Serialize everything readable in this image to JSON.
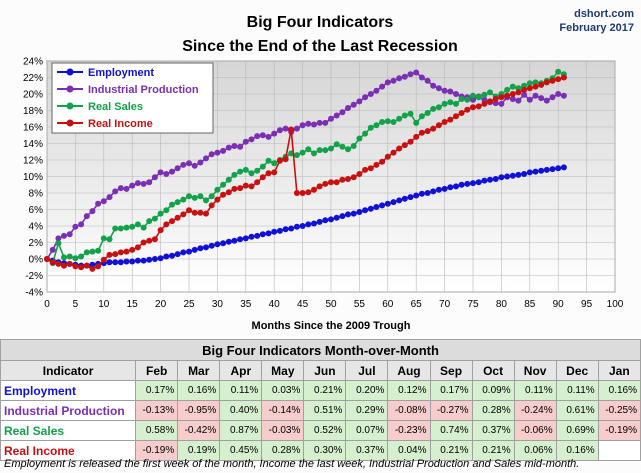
{
  "chart_data": {
    "type": "line",
    "title_line1": "Big Four Indicators",
    "title_line2": "Since the End of the Last Recession",
    "credit_site": "dshort.com",
    "credit_date": "February 2017",
    "xlabel": "Months Since the 2009 Trough",
    "xlim": [
      0,
      100
    ],
    "ylim": [
      -4,
      24
    ],
    "x_ticks": [
      0,
      5,
      10,
      15,
      20,
      25,
      30,
      35,
      40,
      45,
      50,
      55,
      60,
      65,
      70,
      75,
      80,
      85,
      90,
      95,
      100
    ],
    "y_ticks": [
      "-4%",
      "-2%",
      "0%",
      "2%",
      "4%",
      "6%",
      "8%",
      "10%",
      "12%",
      "14%",
      "16%",
      "18%",
      "20%",
      "22%",
      "24%"
    ],
    "legend_placement": "top-left",
    "grid": true,
    "series": [
      {
        "name": "Employment",
        "color": "#1010d8",
        "values": [
          0,
          -0.2,
          -0.4,
          -0.5,
          -0.6,
          -0.7,
          -0.8,
          -0.8,
          -0.7,
          -0.6,
          -0.5,
          -0.4,
          -0.4,
          -0.4,
          -0.3,
          -0.3,
          -0.2,
          -0.2,
          -0.1,
          0,
          0.1,
          0.3,
          0.4,
          0.6,
          0.8,
          0.9,
          1.1,
          1.3,
          1.4,
          1.6,
          1.8,
          1.9,
          2.1,
          2.2,
          2.4,
          2.5,
          2.7,
          2.8,
          3.0,
          3.1,
          3.3,
          3.4,
          3.6,
          3.7,
          3.9,
          4.0,
          4.2,
          4.3,
          4.5,
          4.7,
          4.8,
          5.0,
          5.2,
          5.4,
          5.5,
          5.7,
          5.9,
          6.1,
          6.3,
          6.5,
          6.7,
          6.9,
          7.1,
          7.3,
          7.5,
          7.7,
          7.9,
          8.0,
          8.2,
          8.4,
          8.5,
          8.7,
          8.8,
          9.0,
          9.1,
          9.2,
          9.3,
          9.5,
          9.6,
          9.7,
          9.9,
          10.0,
          10.1,
          10.2,
          10.3,
          10.5,
          10.6,
          10.7,
          10.8,
          10.9,
          11.0,
          11.1
        ]
      },
      {
        "name": "Industrial Production",
        "color": "#7a2fb5",
        "values": [
          0,
          1.1,
          2.5,
          2.8,
          3.0,
          3.9,
          4.2,
          5.2,
          5.8,
          6.7,
          7.0,
          7.5,
          8.2,
          8.6,
          8.5,
          8.9,
          9.2,
          9.1,
          9.3,
          9.9,
          10.5,
          10.3,
          10.6,
          11.0,
          11.4,
          11.6,
          11.3,
          11.7,
          12.2,
          12.7,
          12.9,
          13.1,
          13.5,
          13.7,
          13.6,
          14.2,
          14.5,
          14.9,
          15.0,
          14.8,
          15.2,
          15.6,
          15.8,
          15.4,
          15.8,
          16.2,
          16.4,
          16.3,
          16.5,
          16.5,
          17.0,
          17.4,
          17.8,
          18.3,
          18.7,
          19.1,
          19.6,
          20.0,
          20.4,
          20.9,
          21.4,
          21.6,
          21.9,
          22.1,
          22.4,
          22.6,
          22.0,
          21.6,
          21.0,
          20.7,
          20.4,
          20.3,
          20.0,
          19.7,
          19.6,
          19.3,
          19.7,
          19.3,
          19.0,
          18.9,
          18.8,
          19.6,
          19.4,
          19.2,
          19.9,
          19.3,
          19.8,
          19.5,
          19.2,
          19.6,
          20.0,
          19.8
        ]
      },
      {
        "name": "Real Sales",
        "color": "#12a24a",
        "values": [
          0,
          -0.5,
          1.9,
          0.2,
          0.3,
          0.1,
          0.3,
          0.8,
          0.9,
          1.0,
          2.5,
          2.4,
          3.7,
          3.7,
          3.8,
          3.9,
          4.2,
          3.8,
          4.6,
          4.9,
          5.5,
          5.9,
          6.6,
          6.9,
          7.2,
          7.6,
          7.4,
          7.6,
          7.1,
          7.6,
          8.4,
          9.0,
          9.6,
          10.2,
          10.6,
          10.8,
          10.4,
          10.7,
          11.2,
          11.9,
          11.6,
          12.0,
          12.4,
          12.8,
          12.6,
          12.9,
          13.3,
          12.8,
          13.2,
          13.2,
          13.4,
          13.9,
          13.6,
          13.3,
          13.7,
          14.6,
          15.2,
          15.9,
          16.2,
          16.6,
          16.7,
          16.6,
          17.0,
          17.4,
          17.6,
          16.5,
          17.3,
          17.7,
          18.2,
          18.4,
          18.8,
          19.0,
          18.8,
          19.4,
          19.3,
          19.8,
          19.6,
          19.9,
          20.2,
          19.7,
          20.0,
          20.5,
          20.9,
          20.7,
          21.0,
          21.3,
          21.4,
          21.3,
          21.6,
          21.9,
          22.7,
          22.4
        ]
      },
      {
        "name": "Real Income",
        "color": "#c81010",
        "values": [
          0,
          -0.4,
          -0.6,
          -0.8,
          -0.6,
          -0.9,
          -1.0,
          -0.8,
          -1.2,
          -0.9,
          -0.1,
          0.5,
          0.6,
          0.8,
          0.9,
          1.1,
          1.4,
          2.0,
          2.2,
          2.4,
          3.5,
          4.2,
          4.6,
          5.0,
          5.4,
          5.9,
          5.6,
          5.6,
          5.5,
          6.5,
          7.2,
          7.8,
          8.1,
          8.5,
          8.6,
          8.9,
          8.8,
          9.3,
          9.9,
          10.4,
          10.5,
          11.9,
          12.1,
          15.7,
          8.0,
          8.0,
          8.1,
          8.4,
          8.8,
          9.1,
          9.3,
          9.3,
          9.6,
          9.7,
          9.9,
          10.3,
          10.8,
          11.0,
          11.4,
          11.8,
          12.4,
          12.9,
          13.4,
          13.8,
          14.2,
          14.8,
          15.3,
          15.5,
          15.8,
          16.2,
          16.6,
          16.9,
          17.3,
          17.7,
          18.1,
          18.4,
          18.5,
          18.8,
          19.1,
          19.4,
          19.6,
          19.8,
          20.0,
          20.2,
          20.5,
          20.7,
          20.9,
          21.1,
          21.4,
          21.6,
          21.8,
          22.0
        ]
      }
    ]
  },
  "table": {
    "caption": "Big Four Indicators Month-over-Month",
    "indicator_header": "Indicator",
    "months": [
      "Feb",
      "Mar",
      "Apr",
      "May",
      "Jun",
      "Jul",
      "Aug",
      "Sep",
      "Oct",
      "Nov",
      "Dec",
      "Jan"
    ],
    "rows": [
      {
        "name": "Employment",
        "color": "#1010d8",
        "values": [
          "0.17%",
          "0.16%",
          "0.11%",
          "0.03%",
          "0.21%",
          "0.20%",
          "0.12%",
          "0.17%",
          "0.09%",
          "0.11%",
          "0.11%",
          "0.16%"
        ]
      },
      {
        "name": "Industrial Production",
        "color": "#7a2fb5",
        "values": [
          "-0.13%",
          "-0.95%",
          "0.40%",
          "-0.14%",
          "0.51%",
          "0.29%",
          "-0.08%",
          "-0.27%",
          "0.28%",
          "-0.24%",
          "0.61%",
          "-0.25%"
        ]
      },
      {
        "name": "Real Sales",
        "color": "#12a24a",
        "values": [
          "0.58%",
          "-0.42%",
          "0.87%",
          "-0.03%",
          "0.52%",
          "0.07%",
          "-0.23%",
          "0.74%",
          "0.37%",
          "-0.06%",
          "0.69%",
          "-0.19%"
        ]
      },
      {
        "name": "Real Income",
        "color": "#c81010",
        "values": [
          "-0.19%",
          "0.19%",
          "0.45%",
          "0.28%",
          "0.30%",
          "0.37%",
          "0.04%",
          "0.21%",
          "0.21%",
          "0.06%",
          "0.16%",
          ""
        ]
      }
    ]
  },
  "footnote": "Employment is released the first week of the month, Income the last week, Industrial Production and Sales mid-month."
}
